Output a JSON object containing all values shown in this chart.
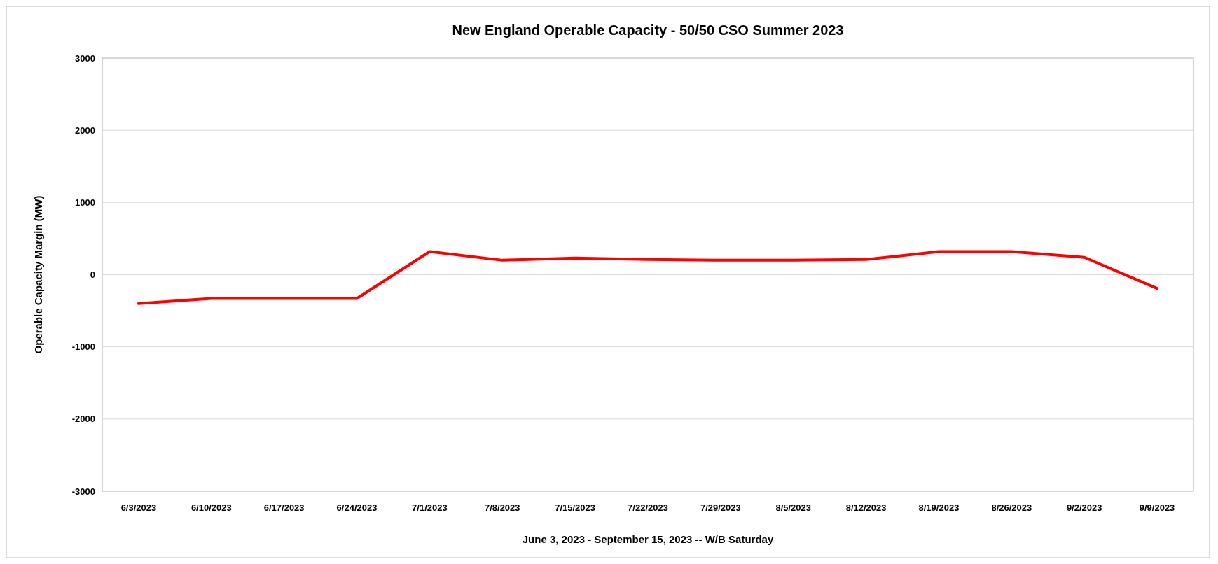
{
  "chart_data": {
    "type": "line",
    "title": "New England Operable Capacity  - 50/50 CSO Summer 2023",
    "xlabel": "June 3, 2023 - September 15, 2023 -- W/B Saturday",
    "ylabel": "Operable Capacity Margin (MW)",
    "categories": [
      "6/3/2023",
      "6/10/2023",
      "6/17/2023",
      "6/24/2023",
      "7/1/2023",
      "7/8/2023",
      "7/15/2023",
      "7/22/2023",
      "7/29/2023",
      "8/5/2023",
      "8/12/2023",
      "8/19/2023",
      "8/26/2023",
      "9/2/2023",
      "9/9/2023"
    ],
    "series": [
      {
        "color": "#ff0000",
        "values": [
          -400,
          -330,
          -330,
          -330,
          320,
          200,
          230,
          210,
          200,
          200,
          210,
          320,
          320,
          240,
          -190
        ]
      }
    ],
    "ylim": [
      -3000,
      3000
    ],
    "yticks": [
      -3000,
      -2000,
      -1000,
      0,
      1000,
      2000,
      3000
    ],
    "grid": "y",
    "marker": "none",
    "line_style": "solid"
  }
}
